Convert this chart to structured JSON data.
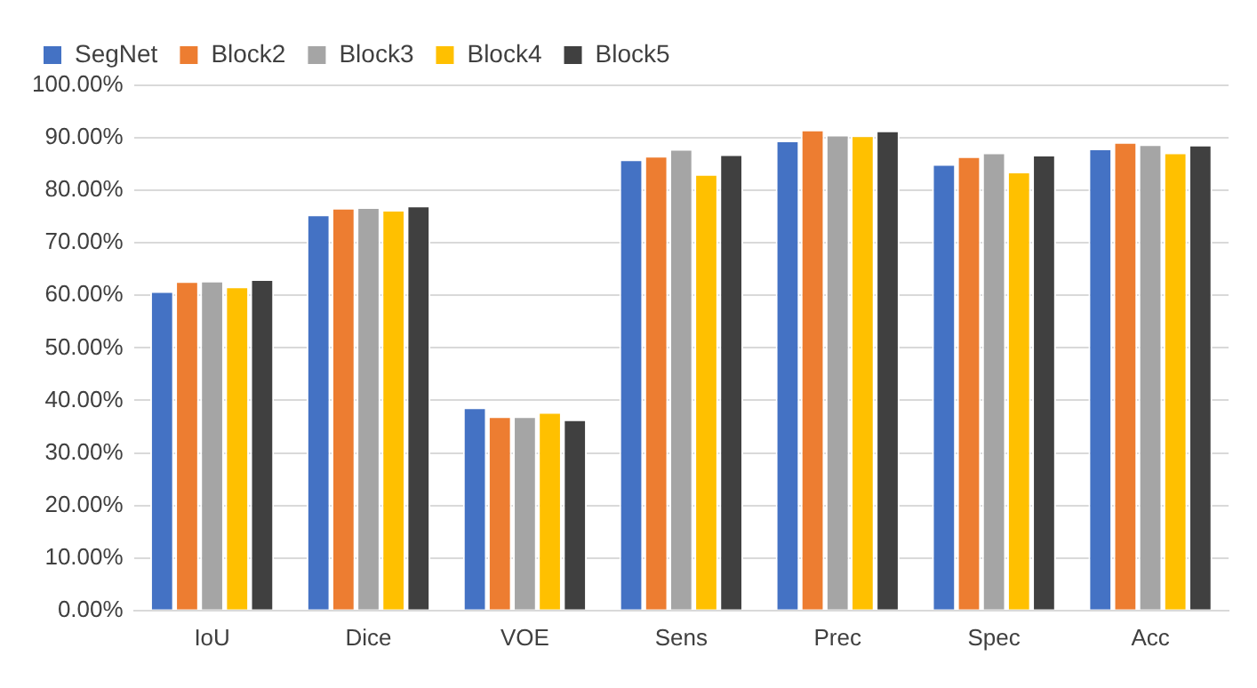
{
  "chart_data": {
    "type": "bar",
    "categories": [
      "IoU",
      "Dice",
      "VOE",
      "Sens",
      "Prec",
      "Spec",
      "Acc"
    ],
    "series": [
      {
        "name": "SegNet",
        "color": "#4472c4",
        "values": [
          60.8,
          75.4,
          38.7,
          85.9,
          89.5,
          85.0,
          88.0
        ]
      },
      {
        "name": "Block2",
        "color": "#ed7d31",
        "values": [
          62.7,
          76.7,
          37.0,
          86.6,
          91.6,
          86.5,
          89.2
        ]
      },
      {
        "name": "Block3",
        "color": "#a5a5a5",
        "values": [
          62.8,
          76.8,
          37.0,
          87.9,
          90.6,
          87.2,
          88.8
        ]
      },
      {
        "name": "Block4",
        "color": "#ffc000",
        "values": [
          61.7,
          76.3,
          37.8,
          83.1,
          90.5,
          83.6,
          87.2
        ]
      },
      {
        "name": "Block5",
        "color": "#404040",
        "values": [
          63.1,
          77.1,
          36.4,
          86.9,
          91.4,
          86.8,
          88.7
        ]
      }
    ],
    "ylim": [
      0,
      100
    ],
    "yticks": [
      {
        "value": 0,
        "label": "0.00%"
      },
      {
        "value": 10,
        "label": "10.00%"
      },
      {
        "value": 20,
        "label": "20.00%"
      },
      {
        "value": 30,
        "label": "30.00%"
      },
      {
        "value": 40,
        "label": "40.00%"
      },
      {
        "value": 50,
        "label": "50.00%"
      },
      {
        "value": 60,
        "label": "60.00%"
      },
      {
        "value": 70,
        "label": "70.00%"
      },
      {
        "value": 80,
        "label": "80.00%"
      },
      {
        "value": 90,
        "label": "90.00%"
      },
      {
        "value": 100,
        "label": "100.00%"
      }
    ],
    "grid": "y",
    "legend": "top left"
  }
}
